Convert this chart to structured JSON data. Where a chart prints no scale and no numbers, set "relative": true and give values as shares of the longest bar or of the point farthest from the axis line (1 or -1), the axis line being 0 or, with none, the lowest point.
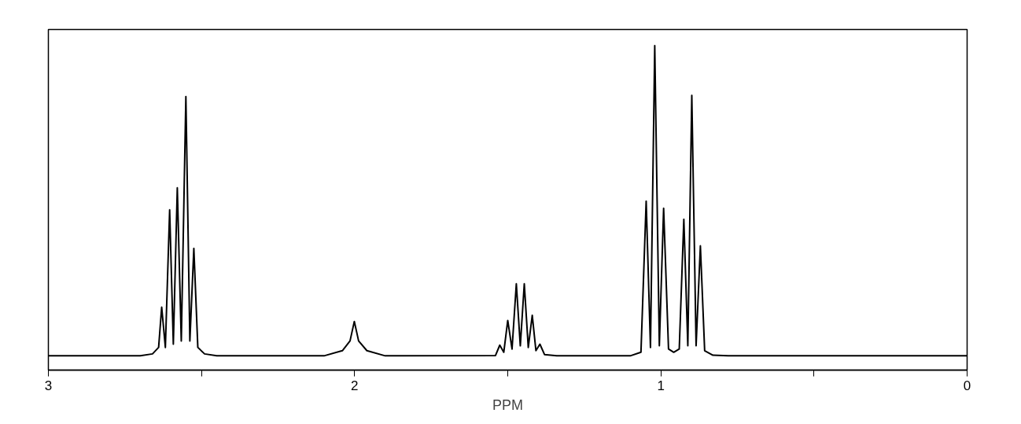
{
  "chart_data": {
    "type": "line",
    "xlabel": "PPM",
    "relative": true,
    "color": "#000000",
    "grid": false,
    "tick_labels": "x",
    "marker": "none",
    "line_style": "solid",
    "xlim": [
      3,
      0
    ],
    "xticks": [
      3,
      {
        "value": 2.5,
        "label": null
      },
      2,
      {
        "value": 1.5,
        "label": null
      },
      1,
      {
        "value": 0.5,
        "label": null
      },
      0
    ],
    "x": [
      3.0,
      2.7,
      2.66,
      2.64,
      2.63,
      2.618,
      2.604,
      2.592,
      2.579,
      2.566,
      2.551,
      2.538,
      2.525,
      2.512,
      2.49,
      2.45,
      2.1,
      2.04,
      2.015,
      2.001,
      1.987,
      1.96,
      1.9,
      1.54,
      1.526,
      1.513,
      1.5,
      1.486,
      1.472,
      1.459,
      1.446,
      1.433,
      1.42,
      1.408,
      1.395,
      1.38,
      1.34,
      1.1,
      1.065,
      1.048,
      1.034,
      1.02,
      1.005,
      0.991,
      0.975,
      0.958,
      0.94,
      0.925,
      0.912,
      0.899,
      0.885,
      0.871,
      0.857,
      0.83,
      0.78,
      0
    ],
    "values": [
      0.044,
      0.044,
      0.05,
      0.07,
      0.194,
      0.07,
      0.494,
      0.08,
      0.562,
      0.09,
      0.843,
      0.09,
      0.375,
      0.07,
      0.05,
      0.044,
      0.044,
      0.06,
      0.09,
      0.15,
      0.09,
      0.06,
      0.044,
      0.045,
      0.077,
      0.055,
      0.153,
      0.065,
      0.266,
      0.075,
      0.266,
      0.07,
      0.169,
      0.06,
      0.08,
      0.048,
      0.044,
      0.044,
      0.055,
      0.521,
      0.07,
      1.0,
      0.075,
      0.499,
      0.065,
      0.055,
      0.065,
      0.465,
      0.075,
      0.847,
      0.075,
      0.383,
      0.06,
      0.046,
      0.044,
      0.044
    ]
  }
}
